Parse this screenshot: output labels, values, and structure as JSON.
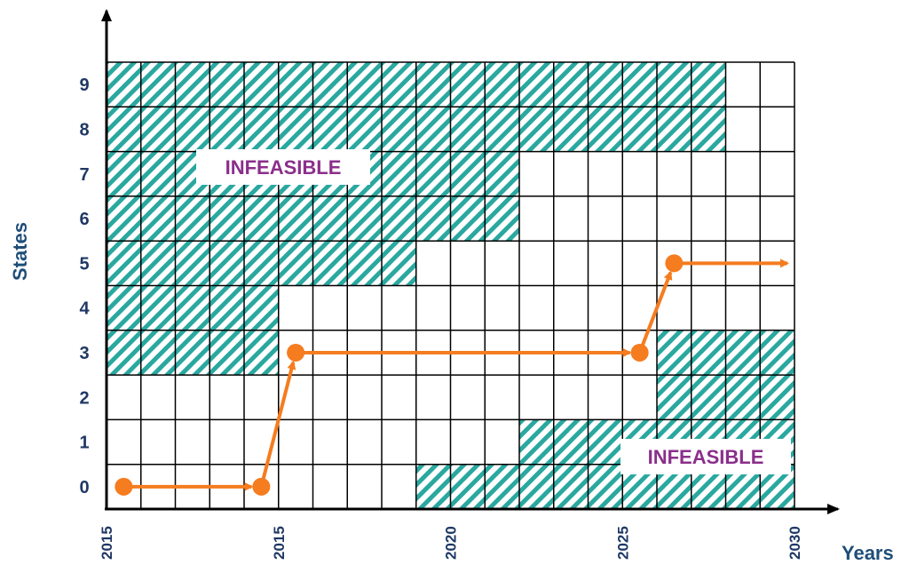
{
  "axes": {
    "y_title": "States",
    "x_title": "Years",
    "y_ticks": [
      "0",
      "1",
      "2",
      "3",
      "4",
      "5",
      "6",
      "7",
      "8",
      "9"
    ],
    "x_ticks": [
      "2015",
      "2015",
      "2020",
      "2025",
      "2030"
    ]
  },
  "grid": {
    "columns": 20,
    "rows": 10,
    "infeasible_cells": {
      "9": [
        0,
        1,
        2,
        3,
        4,
        5,
        6,
        7,
        8,
        9,
        10,
        11,
        12,
        13,
        14,
        15,
        16,
        17
      ],
      "8": [
        0,
        1,
        2,
        3,
        4,
        5,
        6,
        7,
        8,
        9,
        10,
        11,
        12,
        13,
        14,
        15,
        16,
        17
      ],
      "7": [
        0,
        1,
        2,
        3,
        4,
        5,
        6,
        7,
        8,
        9,
        10,
        11
      ],
      "6": [
        0,
        1,
        2,
        3,
        4,
        5,
        6,
        7,
        8,
        9,
        10,
        11
      ],
      "5": [
        0,
        1,
        2,
        3,
        4,
        5,
        6,
        7,
        8
      ],
      "4": [
        0,
        1,
        2,
        3,
        4
      ],
      "3": [
        0,
        1,
        2,
        3,
        4,
        16,
        17,
        18,
        19
      ],
      "2": [
        16,
        17,
        18,
        19
      ],
      "1": [
        12,
        13,
        14,
        15,
        16,
        17,
        18,
        19
      ],
      "0": [
        9,
        10,
        11,
        12,
        13,
        14,
        15,
        16,
        17,
        18,
        19
      ]
    }
  },
  "labels": {
    "infeasible_top": "INFEASIBLE",
    "infeasible_bottom": "INFEASIBLE"
  },
  "path": {
    "nodes": [
      {
        "col": 0.5,
        "state": 0
      },
      {
        "col": 4.5,
        "state": 0
      },
      {
        "col": 5.5,
        "state": 3
      },
      {
        "col": 15.5,
        "state": 3
      },
      {
        "col": 16.5,
        "state": 5
      }
    ],
    "end_col": 20.0
  },
  "colors": {
    "hatch": "#2aa8a0",
    "path": "#f57c1f",
    "axis_title": "#1f4e79",
    "tick": "#1f3864",
    "infeasible_text": "#8b2f8b"
  }
}
